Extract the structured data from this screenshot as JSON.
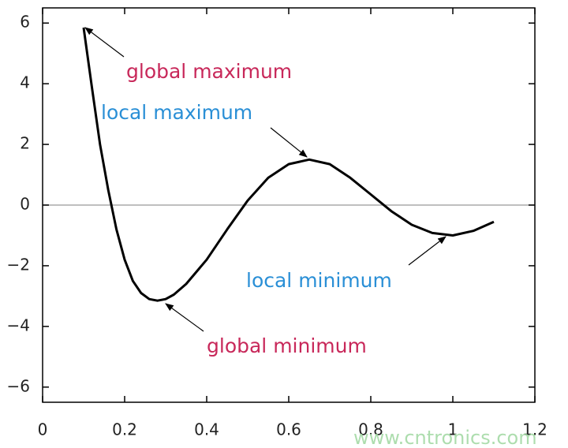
{
  "chart_data": {
    "type": "line",
    "x": [
      0.1,
      0.12,
      0.14,
      0.16,
      0.18,
      0.2,
      0.22,
      0.24,
      0.26,
      0.28,
      0.3,
      0.32,
      0.35,
      0.4,
      0.45,
      0.5,
      0.55,
      0.6,
      0.65,
      0.7,
      0.75,
      0.8,
      0.85,
      0.9,
      0.95,
      1.0,
      1.05,
      1.1
    ],
    "series": [
      {
        "color": "#000000",
        "values": [
          5.85,
          3.9,
          2.0,
          0.5,
          -0.8,
          -1.8,
          -2.5,
          -2.9,
          -3.1,
          -3.15,
          -3.1,
          -2.95,
          -2.6,
          -1.8,
          -0.8,
          0.15,
          0.9,
          1.35,
          1.5,
          1.35,
          0.9,
          0.35,
          -0.2,
          -0.65,
          -0.92,
          -1.0,
          -0.85,
          -0.55
        ]
      }
    ],
    "xlim": [
      0,
      1.2
    ],
    "ylim": [
      -6.5,
      6.5
    ],
    "xticks": [
      0,
      0.2,
      0.4,
      0.6,
      0.8,
      1,
      1.2
    ],
    "yticks": [
      {
        "value": -6,
        "label": "−6"
      },
      {
        "value": -4,
        "label": "−4"
      },
      {
        "value": -2,
        "label": "−2"
      },
      0,
      2,
      4,
      6
    ],
    "zero_line": true,
    "annotations": [
      {
        "text": "global maximum",
        "color": "#c8285a"
      },
      {
        "text": "local maximum",
        "color": "#2a8fd6"
      },
      {
        "text": "local minimum",
        "color": "#2a8fd6"
      },
      {
        "text": "global minimum",
        "color": "#c8285a"
      }
    ],
    "watermark": "www.cntronics.com"
  }
}
